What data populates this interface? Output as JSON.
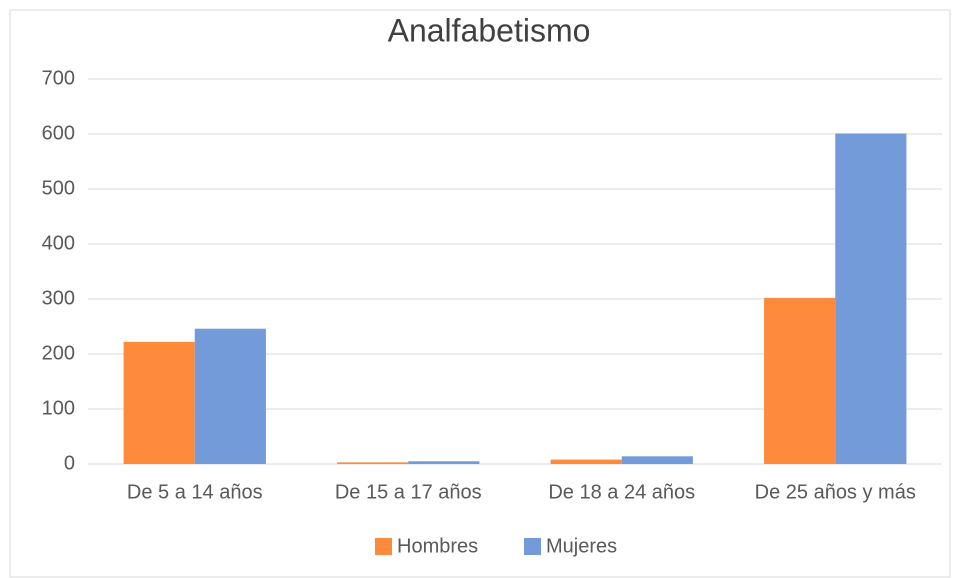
{
  "chart_data": {
    "type": "bar",
    "title": "Analfabetismo",
    "categories": [
      "De 5 a 14 años",
      "De 15 a 17 años",
      "De 18 a 24 años",
      "De 25 años y más"
    ],
    "series": [
      {
        "name": "Hombres",
        "color": "#fd8b3b",
        "values": [
          222,
          3,
          8,
          302
        ]
      },
      {
        "name": "Mujeres",
        "color": "#739ad9",
        "values": [
          246,
          5,
          14,
          601
        ]
      }
    ],
    "ylim": [
      0,
      700
    ],
    "yticks": [
      0,
      100,
      200,
      300,
      400,
      500,
      600,
      700
    ],
    "grid": true,
    "legend": "bottom"
  }
}
